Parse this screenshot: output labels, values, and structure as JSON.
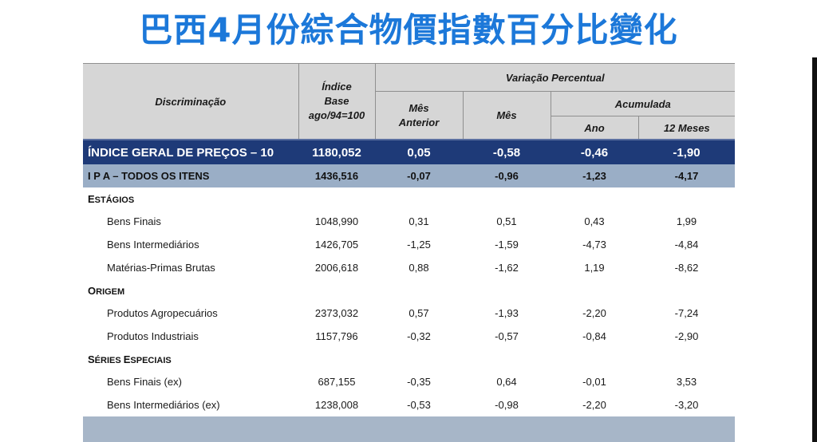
{
  "title": "巴西4月份綜合物價指數百分比變化",
  "header": {
    "discriminacao": "Discriminação",
    "indice_line1": "Índice",
    "indice_line2": "Base",
    "indice_line3": "ago/94=100",
    "variacao": "Variação Percentual",
    "mes_anterior_line1": "Mês",
    "mes_anterior_line2": "Anterior",
    "mes": "Mês",
    "acumulada": "Acumulada",
    "ano": "Ano",
    "doze_meses": "12 Meses"
  },
  "main_row": {
    "label": "ÍNDICE GERAL DE PREÇOS – 10",
    "indice": "1180,052",
    "mes_anterior": "0,05",
    "mes": "-0,58",
    "ano": "-0,46",
    "doze_meses": "-1,90"
  },
  "ipa_row": {
    "label": "I P A – TODOS OS ITENS",
    "indice": "1436,516",
    "mes_anterior": "-0,07",
    "mes": "-0,96",
    "ano": "-1,23",
    "doze_meses": "-4,17"
  },
  "sections": [
    {
      "cap": "E",
      "rest": "STÁGIOS",
      "rows": [
        {
          "label": "Bens Finais",
          "indice": "1048,990",
          "mes_anterior": "0,31",
          "mes": "0,51",
          "ano": "0,43",
          "doze_meses": "1,99"
        },
        {
          "label": "Bens Intermediários",
          "indice": "1426,705",
          "mes_anterior": "-1,25",
          "mes": "-1,59",
          "ano": "-4,73",
          "doze_meses": "-4,84"
        },
        {
          "label": "Matérias-Primas Brutas",
          "indice": "2006,618",
          "mes_anterior": "0,88",
          "mes": "-1,62",
          "ano": "1,19",
          "doze_meses": "-8,62"
        }
      ]
    },
    {
      "cap": "O",
      "rest": "RIGEM",
      "rows": [
        {
          "label": "Produtos Agropecuários",
          "indice": "2373,032",
          "mes_anterior": "0,57",
          "mes": "-1,93",
          "ano": "-2,20",
          "doze_meses": "-7,24"
        },
        {
          "label": "Produtos Industriais",
          "indice": "1157,796",
          "mes_anterior": "-0,32",
          "mes": "-0,57",
          "ano": "-0,84",
          "doze_meses": "-2,90"
        }
      ]
    },
    {
      "cap": "S",
      "rest": "ÉRIES ",
      "cap2": "E",
      "rest2": "SPECIAIS",
      "rows": [
        {
          "label": "Bens Finais (ex)",
          "indice": "687,155",
          "mes_anterior": "-0,35",
          "mes": "0,64",
          "ano": "-0,01",
          "doze_meses": "3,53"
        },
        {
          "label": "Bens Intermediários (ex)",
          "indice": "1238,008",
          "mes_anterior": "-0,53",
          "mes": "-0,98",
          "ano": "-2,20",
          "doze_meses": "-3,20"
        }
      ]
    }
  ]
}
